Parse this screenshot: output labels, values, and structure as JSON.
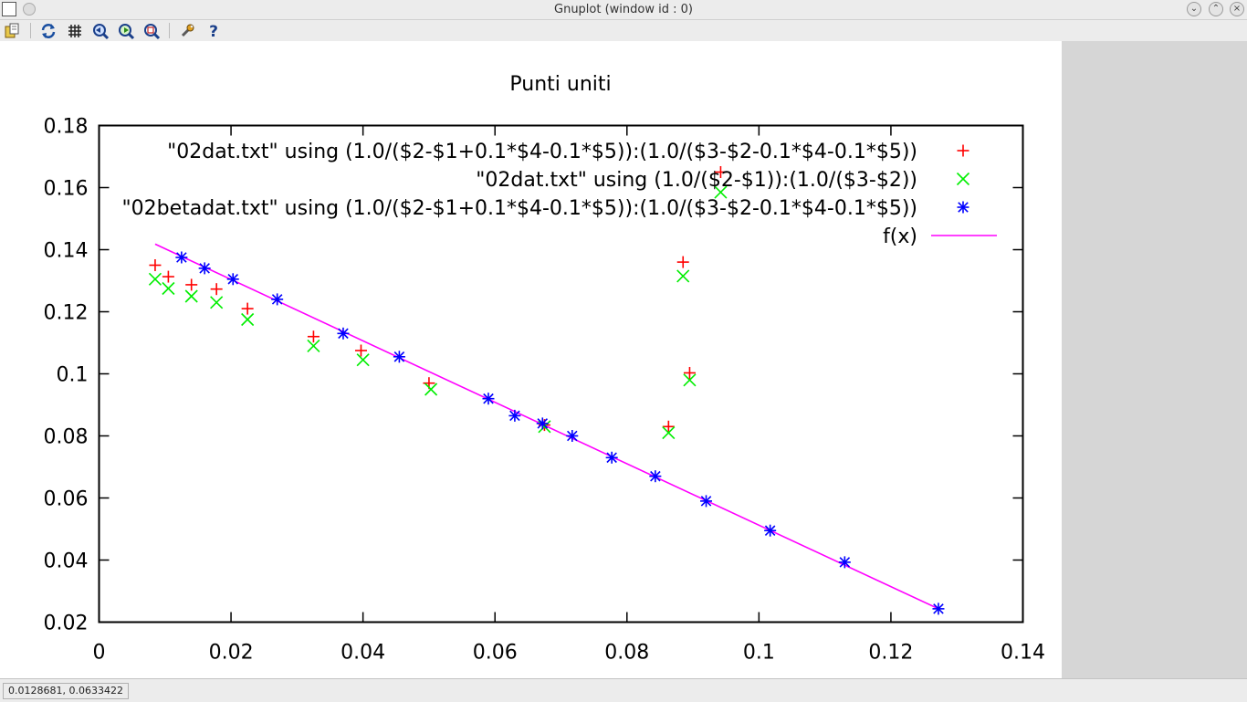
{
  "window": {
    "title": "Gnuplot (window id : 0)"
  },
  "toolbar": {
    "buttons": [
      {
        "name": "copy-to-clipboard",
        "icon": "clipboard-icon"
      },
      {
        "name": "replot",
        "icon": "refresh-icon"
      },
      {
        "name": "toggle-grid",
        "icon": "grid-icon"
      },
      {
        "name": "previous-zoom",
        "icon": "zoom-back-icon"
      },
      {
        "name": "next-zoom",
        "icon": "zoom-forward-icon"
      },
      {
        "name": "autoscale",
        "icon": "zoom-fit-icon"
      },
      {
        "name": "settings",
        "icon": "wrench-icon"
      },
      {
        "name": "help",
        "icon": "help-icon"
      }
    ]
  },
  "status": {
    "coords": "0.0128681,  0.0633422"
  },
  "chart_data": {
    "type": "scatter",
    "title": "Punti uniti",
    "xlabel": "",
    "ylabel": "",
    "xlim": [
      0,
      0.14
    ],
    "ylim": [
      0.02,
      0.18
    ],
    "x_ticks": [
      {
        "value": 0,
        "label": "0"
      },
      {
        "value": 0.02,
        "label": "0.02"
      },
      {
        "value": 0.04,
        "label": "0.04"
      },
      {
        "value": 0.06,
        "label": "0.06"
      },
      {
        "value": 0.08,
        "label": "0.08"
      },
      {
        "value": 0.1,
        "label": "0.1"
      },
      {
        "value": 0.12,
        "label": "0.12"
      },
      {
        "value": 0.14,
        "label": "0.14"
      }
    ],
    "y_ticks": [
      {
        "value": 0.02,
        "label": "0.02"
      },
      {
        "value": 0.04,
        "label": "0.04"
      },
      {
        "value": 0.06,
        "label": "0.06"
      },
      {
        "value": 0.08,
        "label": "0.08"
      },
      {
        "value": 0.1,
        "label": "0.1"
      },
      {
        "value": 0.12,
        "label": "0.12"
      },
      {
        "value": 0.14,
        "label": "0.14"
      },
      {
        "value": 0.16,
        "label": "0.16"
      },
      {
        "value": 0.18,
        "label": "0.18"
      }
    ],
    "grid": false,
    "legend_position": "top-right",
    "series": [
      {
        "name": "\"02dat.txt\" using (1.0/($2-$1+0.1*$4-0.1*$5)):(1.0/($3-$2-0.1*$4-0.1*$5))",
        "marker": "plus",
        "color": "#ff0000",
        "points": [
          [
            0.0085,
            0.135
          ],
          [
            0.0105,
            0.1313
          ],
          [
            0.014,
            0.1287
          ],
          [
            0.0178,
            0.1273
          ],
          [
            0.0225,
            0.121
          ],
          [
            0.0325,
            0.112
          ],
          [
            0.0397,
            0.1075
          ],
          [
            0.05,
            0.097
          ],
          [
            0.0675,
            0.0835
          ],
          [
            0.0863,
            0.083
          ],
          [
            0.0885,
            0.136
          ],
          [
            0.0895,
            0.1003
          ],
          [
            0.0942,
            0.165
          ]
        ]
      },
      {
        "name": "\"02dat.txt\" using (1.0/($2-$1)):(1.0/($3-$2))",
        "marker": "cross",
        "color": "#00ee00",
        "points": [
          [
            0.0085,
            0.1305
          ],
          [
            0.0105,
            0.1275
          ],
          [
            0.014,
            0.125
          ],
          [
            0.0178,
            0.123
          ],
          [
            0.0225,
            0.1175
          ],
          [
            0.0325,
            0.109
          ],
          [
            0.04,
            0.1045
          ],
          [
            0.0503,
            0.095
          ],
          [
            0.0675,
            0.083
          ],
          [
            0.0863,
            0.081
          ],
          [
            0.0885,
            0.1315
          ],
          [
            0.0895,
            0.098
          ],
          [
            0.0942,
            0.1585
          ]
        ]
      },
      {
        "name": "\"02betadat.txt\" using (1.0/($2-$1+0.1*$4-0.1*$5)):(1.0/($3-$2-0.1*$4-0.1*$5))",
        "marker": "star",
        "color": "#0000ff",
        "points": [
          [
            0.0125,
            0.1375
          ],
          [
            0.016,
            0.134
          ],
          [
            0.0203,
            0.1305
          ],
          [
            0.027,
            0.124
          ],
          [
            0.037,
            0.113
          ],
          [
            0.0455,
            0.1055
          ],
          [
            0.059,
            0.092
          ],
          [
            0.063,
            0.0865
          ],
          [
            0.0672,
            0.084
          ],
          [
            0.0717,
            0.08
          ],
          [
            0.0777,
            0.073
          ],
          [
            0.0843,
            0.067
          ],
          [
            0.092,
            0.059
          ],
          [
            0.1017,
            0.0495
          ],
          [
            0.113,
            0.0393
          ],
          [
            0.1272,
            0.0243
          ]
        ]
      },
      {
        "name": "f(x)",
        "marker": "line",
        "color": "#ff00ff",
        "line": [
          [
            0.0085,
            0.1418
          ],
          [
            0.1272,
            0.0243
          ]
        ]
      }
    ]
  }
}
